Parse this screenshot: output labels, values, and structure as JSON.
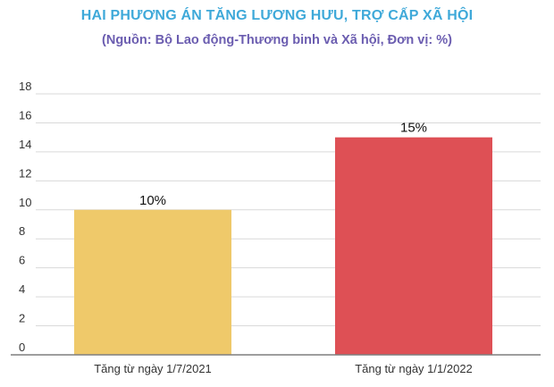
{
  "chart_data": {
    "type": "bar",
    "title": "HAI PHƯƠNG ÁN TĂNG LƯƠNG HƯU, TRỢ CẤP XÃ HỘI",
    "subtitle": "(Nguồn: Bộ Lao động-Thương binh và Xã hội, Đơn vị: %)",
    "categories": [
      "Tăng từ ngày 1/7/2021",
      "Tăng từ ngày 1/1/2022"
    ],
    "values": [
      10,
      15
    ],
    "data_labels": [
      "10%",
      "15%"
    ],
    "colors": [
      "#efc96a",
      "#de5055"
    ],
    "ylim": [
      0,
      18
    ],
    "yticks": [
      0,
      2,
      4,
      6,
      8,
      10,
      12,
      14,
      16,
      18
    ],
    "ytick_labels": [
      "0",
      "2",
      "4",
      "6",
      "8",
      "10",
      "12",
      "14",
      "16",
      "18"
    ],
    "grid": true,
    "legend": "none",
    "xlabel": "",
    "ylabel": ""
  },
  "colors": {
    "title": "#3fa9d9",
    "subtitle": "#6b5db0",
    "grid": "#d9d9d9",
    "axis": "#7f7f7f",
    "text": "#333333"
  }
}
